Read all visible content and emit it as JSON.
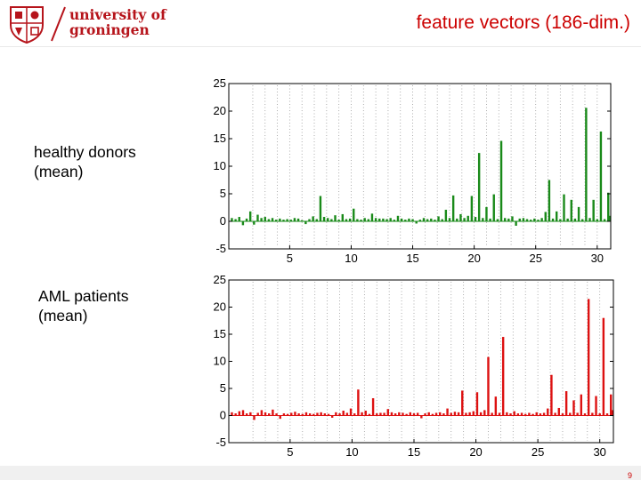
{
  "header": {
    "logo_line1": "university of",
    "logo_line2": "groningen",
    "title": "feature vectors (186-dim.)"
  },
  "labels": {
    "healthy_line1": "healthy donors",
    "healthy_line2": "(mean)",
    "aml_line1": "AML patients",
    "aml_line2": "(mean)"
  },
  "page_number": "9",
  "colors": {
    "accent": "#cc0000",
    "healthy_bars": "#1a8a1a",
    "aml_bars": "#dd1111",
    "logo": "#b6141b"
  },
  "chart_data": [
    {
      "type": "bar",
      "series_label": "healthy donors (mean)",
      "xlim": [
        0.05,
        31.1
      ],
      "ylim": [
        -5,
        25
      ],
      "xticks": [
        5,
        10,
        15,
        20,
        25,
        30
      ],
      "yticks": [
        -5,
        0,
        5,
        10,
        15,
        20,
        25
      ],
      "grid": "dotted vertical separators every 1 unit",
      "bars": [
        {
          "x": 0.3,
          "y": 0.6
        },
        {
          "x": 0.6,
          "y": 0.4
        },
        {
          "x": 0.9,
          "y": 0.8
        },
        {
          "x": 1.2,
          "y": -0.7
        },
        {
          "x": 1.5,
          "y": 0.5
        },
        {
          "x": 1.8,
          "y": 1.8
        },
        {
          "x": 2.1,
          "y": -0.6
        },
        {
          "x": 2.4,
          "y": 1.2
        },
        {
          "x": 2.7,
          "y": 0.6
        },
        {
          "x": 3.0,
          "y": 0.8
        },
        {
          "x": 3.3,
          "y": 0.4
        },
        {
          "x": 3.6,
          "y": 0.6
        },
        {
          "x": 3.9,
          "y": 0.3
        },
        {
          "x": 4.2,
          "y": 0.5
        },
        {
          "x": 4.5,
          "y": 0.3
        },
        {
          "x": 4.8,
          "y": 0.4
        },
        {
          "x": 5.1,
          "y": 0.3
        },
        {
          "x": 5.4,
          "y": 0.6
        },
        {
          "x": 5.7,
          "y": 0.5
        },
        {
          "x": 6.0,
          "y": 0.2
        },
        {
          "x": 6.3,
          "y": -0.5
        },
        {
          "x": 6.6,
          "y": 0.4
        },
        {
          "x": 6.9,
          "y": 0.9
        },
        {
          "x": 7.2,
          "y": 0.4
        },
        {
          "x": 7.5,
          "y": 4.6
        },
        {
          "x": 7.8,
          "y": 0.8
        },
        {
          "x": 8.1,
          "y": 0.6
        },
        {
          "x": 8.4,
          "y": 0.4
        },
        {
          "x": 8.7,
          "y": 1.1
        },
        {
          "x": 9.0,
          "y": 0.3
        },
        {
          "x": 9.3,
          "y": 1.3
        },
        {
          "x": 9.6,
          "y": 0.4
        },
        {
          "x": 9.9,
          "y": 0.5
        },
        {
          "x": 10.2,
          "y": 2.3
        },
        {
          "x": 10.5,
          "y": 0.4
        },
        {
          "x": 10.8,
          "y": 0.3
        },
        {
          "x": 11.1,
          "y": 0.6
        },
        {
          "x": 11.4,
          "y": 0.4
        },
        {
          "x": 11.7,
          "y": 1.4
        },
        {
          "x": 12.0,
          "y": 0.6
        },
        {
          "x": 12.3,
          "y": 0.5
        },
        {
          "x": 12.6,
          "y": 0.5
        },
        {
          "x": 12.9,
          "y": 0.4
        },
        {
          "x": 13.2,
          "y": 0.6
        },
        {
          "x": 13.5,
          "y": 0.3
        },
        {
          "x": 13.8,
          "y": 1.0
        },
        {
          "x": 14.1,
          "y": 0.5
        },
        {
          "x": 14.4,
          "y": 0.3
        },
        {
          "x": 14.7,
          "y": 0.5
        },
        {
          "x": 15.0,
          "y": 0.4
        },
        {
          "x": 15.3,
          "y": -0.4
        },
        {
          "x": 15.6,
          "y": 0.3
        },
        {
          "x": 15.9,
          "y": 0.6
        },
        {
          "x": 16.2,
          "y": 0.4
        },
        {
          "x": 16.5,
          "y": 0.5
        },
        {
          "x": 16.8,
          "y": 0.3
        },
        {
          "x": 17.1,
          "y": 0.9
        },
        {
          "x": 17.4,
          "y": 0.4
        },
        {
          "x": 17.7,
          "y": 2.1
        },
        {
          "x": 18.0,
          "y": 0.6
        },
        {
          "x": 18.3,
          "y": 4.7
        },
        {
          "x": 18.6,
          "y": 0.5
        },
        {
          "x": 18.9,
          "y": 1.3
        },
        {
          "x": 19.2,
          "y": 0.6
        },
        {
          "x": 19.5,
          "y": 1.0
        },
        {
          "x": 19.8,
          "y": 4.6
        },
        {
          "x": 20.1,
          "y": 0.8
        },
        {
          "x": 20.4,
          "y": 12.4
        },
        {
          "x": 20.7,
          "y": 0.6
        },
        {
          "x": 21.0,
          "y": 2.6
        },
        {
          "x": 21.3,
          "y": 0.5
        },
        {
          "x": 21.6,
          "y": 4.9
        },
        {
          "x": 21.9,
          "y": 0.4
        },
        {
          "x": 22.2,
          "y": 14.6
        },
        {
          "x": 22.5,
          "y": 0.6
        },
        {
          "x": 22.8,
          "y": 0.5
        },
        {
          "x": 23.1,
          "y": 0.9
        },
        {
          "x": 23.4,
          "y": -0.8
        },
        {
          "x": 23.7,
          "y": 0.5
        },
        {
          "x": 24.0,
          "y": 0.6
        },
        {
          "x": 24.3,
          "y": 0.4
        },
        {
          "x": 24.6,
          "y": 0.3
        },
        {
          "x": 24.9,
          "y": 0.5
        },
        {
          "x": 25.2,
          "y": 0.3
        },
        {
          "x": 25.5,
          "y": 0.6
        },
        {
          "x": 25.8,
          "y": 1.7
        },
        {
          "x": 26.1,
          "y": 7.5
        },
        {
          "x": 26.4,
          "y": 0.5
        },
        {
          "x": 26.7,
          "y": 1.8
        },
        {
          "x": 27.0,
          "y": 0.4
        },
        {
          "x": 27.3,
          "y": 4.9
        },
        {
          "x": 27.6,
          "y": 0.5
        },
        {
          "x": 27.9,
          "y": 3.9
        },
        {
          "x": 28.2,
          "y": 0.5
        },
        {
          "x": 28.5,
          "y": 2.6
        },
        {
          "x": 28.8,
          "y": 0.4
        },
        {
          "x": 29.1,
          "y": 20.6
        },
        {
          "x": 29.4,
          "y": 0.6
        },
        {
          "x": 29.7,
          "y": 3.9
        },
        {
          "x": 30.0,
          "y": 0.4
        },
        {
          "x": 30.3,
          "y": 16.3
        },
        {
          "x": 30.6,
          "y": 0.4
        },
        {
          "x": 30.9,
          "y": 5.2
        },
        {
          "x": 31.0,
          "y": 1.0
        }
      ]
    },
    {
      "type": "bar",
      "series_label": "AML patients (mean)",
      "xlim": [
        0.05,
        31.1
      ],
      "ylim": [
        -5,
        25
      ],
      "xticks": [
        5,
        10,
        15,
        20,
        25,
        30
      ],
      "yticks": [
        -5,
        0,
        5,
        10,
        15,
        20,
        25
      ],
      "grid": "dotted vertical separators every 1 unit",
      "bars": [
        {
          "x": 0.3,
          "y": 0.6
        },
        {
          "x": 0.6,
          "y": 0.4
        },
        {
          "x": 0.9,
          "y": 0.8
        },
        {
          "x": 1.2,
          "y": 1.0
        },
        {
          "x": 1.5,
          "y": 0.4
        },
        {
          "x": 1.8,
          "y": 0.6
        },
        {
          "x": 2.1,
          "y": -0.8
        },
        {
          "x": 2.4,
          "y": 0.5
        },
        {
          "x": 2.7,
          "y": 1.0
        },
        {
          "x": 3.0,
          "y": 0.6
        },
        {
          "x": 3.3,
          "y": 0.4
        },
        {
          "x": 3.6,
          "y": 1.1
        },
        {
          "x": 3.9,
          "y": 0.4
        },
        {
          "x": 4.2,
          "y": -0.6
        },
        {
          "x": 4.5,
          "y": 0.4
        },
        {
          "x": 4.8,
          "y": 0.3
        },
        {
          "x": 5.1,
          "y": 0.5
        },
        {
          "x": 5.4,
          "y": 0.7
        },
        {
          "x": 5.7,
          "y": 0.4
        },
        {
          "x": 6.0,
          "y": 0.3
        },
        {
          "x": 6.3,
          "y": 0.6
        },
        {
          "x": 6.6,
          "y": 0.4
        },
        {
          "x": 6.9,
          "y": 0.3
        },
        {
          "x": 7.2,
          "y": 0.5
        },
        {
          "x": 7.5,
          "y": 0.6
        },
        {
          "x": 7.8,
          "y": 0.4
        },
        {
          "x": 8.1,
          "y": 0.3
        },
        {
          "x": 8.4,
          "y": -0.4
        },
        {
          "x": 8.7,
          "y": 0.6
        },
        {
          "x": 9.0,
          "y": 0.4
        },
        {
          "x": 9.3,
          "y": 0.9
        },
        {
          "x": 9.6,
          "y": 0.5
        },
        {
          "x": 9.9,
          "y": 1.3
        },
        {
          "x": 10.2,
          "y": 0.4
        },
        {
          "x": 10.5,
          "y": 4.8
        },
        {
          "x": 10.8,
          "y": 0.6
        },
        {
          "x": 11.1,
          "y": 0.9
        },
        {
          "x": 11.4,
          "y": 0.3
        },
        {
          "x": 11.7,
          "y": 3.2
        },
        {
          "x": 12.0,
          "y": 0.4
        },
        {
          "x": 12.3,
          "y": 0.5
        },
        {
          "x": 12.6,
          "y": 0.5
        },
        {
          "x": 12.9,
          "y": 1.2
        },
        {
          "x": 13.2,
          "y": 0.6
        },
        {
          "x": 13.5,
          "y": 0.4
        },
        {
          "x": 13.8,
          "y": 0.6
        },
        {
          "x": 14.1,
          "y": 0.5
        },
        {
          "x": 14.4,
          "y": 0.3
        },
        {
          "x": 14.7,
          "y": 0.6
        },
        {
          "x": 15.0,
          "y": 0.4
        },
        {
          "x": 15.3,
          "y": 0.5
        },
        {
          "x": 15.6,
          "y": -0.5
        },
        {
          "x": 15.9,
          "y": 0.4
        },
        {
          "x": 16.2,
          "y": 0.6
        },
        {
          "x": 16.5,
          "y": 0.3
        },
        {
          "x": 16.8,
          "y": 0.5
        },
        {
          "x": 17.1,
          "y": 0.6
        },
        {
          "x": 17.4,
          "y": 0.4
        },
        {
          "x": 17.7,
          "y": 1.3
        },
        {
          "x": 18.0,
          "y": 0.5
        },
        {
          "x": 18.3,
          "y": 0.7
        },
        {
          "x": 18.6,
          "y": 0.6
        },
        {
          "x": 18.9,
          "y": 4.6
        },
        {
          "x": 19.2,
          "y": 0.5
        },
        {
          "x": 19.5,
          "y": 0.6
        },
        {
          "x": 19.8,
          "y": 0.8
        },
        {
          "x": 20.1,
          "y": 4.3
        },
        {
          "x": 20.4,
          "y": 0.6
        },
        {
          "x": 20.7,
          "y": 1.0
        },
        {
          "x": 21.0,
          "y": 10.8
        },
        {
          "x": 21.3,
          "y": 0.5
        },
        {
          "x": 21.6,
          "y": 3.5
        },
        {
          "x": 21.9,
          "y": 0.5
        },
        {
          "x": 22.2,
          "y": 14.5
        },
        {
          "x": 22.5,
          "y": 0.6
        },
        {
          "x": 22.8,
          "y": 0.4
        },
        {
          "x": 23.1,
          "y": 0.8
        },
        {
          "x": 23.4,
          "y": 0.4
        },
        {
          "x": 23.7,
          "y": 0.5
        },
        {
          "x": 24.0,
          "y": 0.3
        },
        {
          "x": 24.3,
          "y": 0.5
        },
        {
          "x": 24.6,
          "y": 0.3
        },
        {
          "x": 24.9,
          "y": 0.6
        },
        {
          "x": 25.2,
          "y": 0.4
        },
        {
          "x": 25.5,
          "y": 0.5
        },
        {
          "x": 25.8,
          "y": 1.3
        },
        {
          "x": 26.1,
          "y": 7.5
        },
        {
          "x": 26.4,
          "y": 0.5
        },
        {
          "x": 26.7,
          "y": 1.4
        },
        {
          "x": 27.0,
          "y": 0.4
        },
        {
          "x": 27.3,
          "y": 4.5
        },
        {
          "x": 27.6,
          "y": 0.5
        },
        {
          "x": 27.9,
          "y": 2.8
        },
        {
          "x": 28.2,
          "y": 0.5
        },
        {
          "x": 28.5,
          "y": 3.9
        },
        {
          "x": 28.8,
          "y": 0.4
        },
        {
          "x": 29.1,
          "y": 21.5
        },
        {
          "x": 29.4,
          "y": 0.5
        },
        {
          "x": 29.7,
          "y": 3.6
        },
        {
          "x": 30.0,
          "y": 0.4
        },
        {
          "x": 30.3,
          "y": 18.0
        },
        {
          "x": 30.6,
          "y": 0.4
        },
        {
          "x": 30.9,
          "y": 3.9
        },
        {
          "x": 31.0,
          "y": 1.0
        }
      ]
    }
  ]
}
